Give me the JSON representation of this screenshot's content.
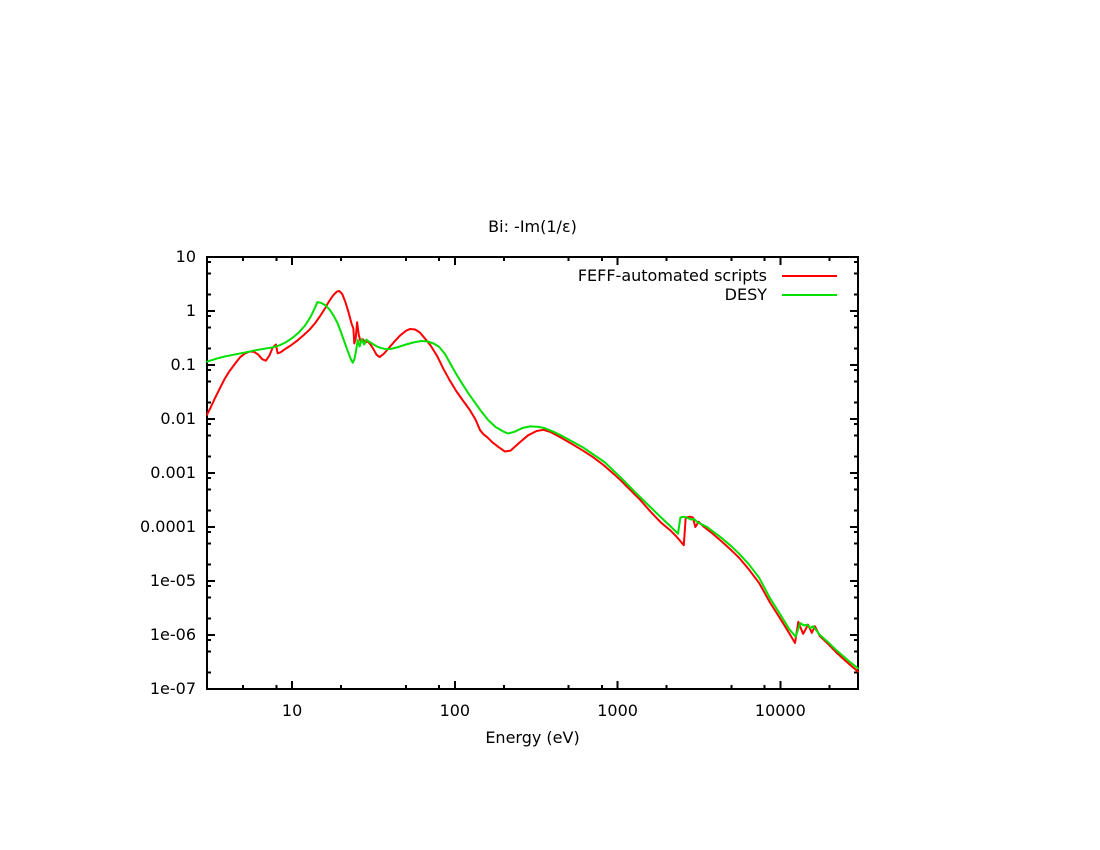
{
  "page": {
    "background": "#ffffff"
  },
  "chart_data": {
    "type": "line",
    "title": "Bi: -Im(1/ε)",
    "xlabel": "Energy (eV)",
    "ylabel": "",
    "x_scale": "log",
    "y_scale": "log",
    "xlim": [
      3,
      30000
    ],
    "ylim": [
      1e-07,
      10
    ],
    "grid": "off",
    "legend_position": "top-right-inside",
    "axis_color": "#000000",
    "minor_tick_pattern": [
      2,
      5,
      8
    ],
    "x_ticks": {
      "values": [
        10,
        100,
        1000,
        10000
      ],
      "labels": [
        "10",
        "100",
        "1000",
        "10000"
      ]
    },
    "y_ticks": {
      "values": [
        10,
        1,
        0.1,
        0.01,
        0.001,
        0.0001,
        1e-05,
        1e-06,
        1e-07
      ],
      "labels": [
        "10",
        "1",
        "0.1",
        "0.01",
        "0.001",
        "0.0001",
        "1e-05",
        "1e-06",
        "1e-07"
      ]
    },
    "series": [
      {
        "name": "FEFF-automated scripts",
        "color": "#ff0000",
        "points": [
          [
            3,
            0.012
          ],
          [
            3.15,
            0.016
          ],
          [
            3.35,
            0.024
          ],
          [
            3.6,
            0.037
          ],
          [
            3.85,
            0.055
          ],
          [
            4.1,
            0.075
          ],
          [
            4.45,
            0.105
          ],
          [
            4.8,
            0.14
          ],
          [
            5.15,
            0.165
          ],
          [
            5.5,
            0.178
          ],
          [
            5.85,
            0.175
          ],
          [
            6.2,
            0.155
          ],
          [
            6.55,
            0.128
          ],
          [
            6.9,
            0.12
          ],
          [
            7.25,
            0.15
          ],
          [
            7.6,
            0.21
          ],
          [
            7.95,
            0.24
          ],
          [
            8.15,
            0.165
          ],
          [
            8.5,
            0.172
          ],
          [
            9,
            0.195
          ],
          [
            9.8,
            0.23
          ],
          [
            10.8,
            0.285
          ],
          [
            11.8,
            0.36
          ],
          [
            12.8,
            0.45
          ],
          [
            13.8,
            0.59
          ],
          [
            14.8,
            0.79
          ],
          [
            15.8,
            1.07
          ],
          [
            16.8,
            1.48
          ],
          [
            17.8,
            1.92
          ],
          [
            18.8,
            2.28
          ],
          [
            19.5,
            2.35
          ],
          [
            20.3,
            2.08
          ],
          [
            21.2,
            1.5
          ],
          [
            22.2,
            0.95
          ],
          [
            23.2,
            0.58
          ],
          [
            23.8,
            0.47
          ],
          [
            24.1,
            0.25
          ],
          [
            24.6,
            0.31
          ],
          [
            25.1,
            0.62
          ],
          [
            25.7,
            0.36
          ],
          [
            26.3,
            0.28
          ],
          [
            27.2,
            0.3
          ],
          [
            28.2,
            0.26
          ],
          [
            29.2,
            0.275
          ],
          [
            30.3,
            0.24
          ],
          [
            31.5,
            0.2
          ],
          [
            33,
            0.155
          ],
          [
            34.5,
            0.14
          ],
          [
            36.5,
            0.16
          ],
          [
            39,
            0.2
          ],
          [
            42,
            0.26
          ],
          [
            46,
            0.35
          ],
          [
            50,
            0.43
          ],
          [
            53,
            0.465
          ],
          [
            57,
            0.455
          ],
          [
            61,
            0.4
          ],
          [
            66,
            0.3
          ],
          [
            71,
            0.23
          ],
          [
            78,
            0.145
          ],
          [
            85,
            0.085
          ],
          [
            93,
            0.052
          ],
          [
            102,
            0.033
          ],
          [
            112,
            0.022
          ],
          [
            123,
            0.015
          ],
          [
            134,
            0.0098
          ],
          [
            143,
            0.0062
          ],
          [
            150,
            0.0052
          ],
          [
            158,
            0.0046
          ],
          [
            170,
            0.0037
          ],
          [
            186,
            0.003
          ],
          [
            203,
            0.0025
          ],
          [
            220,
            0.0026
          ],
          [
            248,
            0.0036
          ],
          [
            282,
            0.005
          ],
          [
            318,
            0.006
          ],
          [
            350,
            0.0063
          ],
          [
            390,
            0.0057
          ],
          [
            450,
            0.0045
          ],
          [
            520,
            0.0035
          ],
          [
            600,
            0.0027
          ],
          [
            700,
            0.002
          ],
          [
            820,
            0.0014
          ],
          [
            950,
            0.00095
          ],
          [
            1035,
            0.00075
          ],
          [
            1200,
            0.00048
          ],
          [
            1372,
            0.00032
          ],
          [
            1600,
            0.00019
          ],
          [
            1850,
            0.00012
          ],
          [
            2100,
            8.75e-05
          ],
          [
            2300,
            6.65e-05
          ],
          [
            2550,
            4.6e-05
          ],
          [
            2620,
            0.00015
          ],
          [
            2780,
            0.000155
          ],
          [
            2900,
            0.00015
          ],
          [
            3000,
            0.0001
          ],
          [
            3150,
            0.000125
          ],
          [
            3400,
            0.0001
          ],
          [
            3800,
            7.7e-05
          ],
          [
            4300,
            5.6e-05
          ],
          [
            5000,
            3.7e-05
          ],
          [
            5600,
            2.65e-05
          ],
          [
            6400,
            1.65e-05
          ],
          [
            7400,
            9.2e-06
          ],
          [
            8640,
            4e-06
          ],
          [
            10000,
            2e-06
          ],
          [
            11300,
            1.1e-06
          ],
          [
            12300,
            7.1e-07
          ],
          [
            12900,
            1.75e-06
          ],
          [
            13800,
            1.05e-06
          ],
          [
            14800,
            1.55e-06
          ],
          [
            15600,
            1.1e-06
          ],
          [
            16300,
            1.45e-06
          ],
          [
            17500,
            9.5e-07
          ],
          [
            19500,
            7e-07
          ],
          [
            22000,
            4.8e-07
          ],
          [
            25500,
            3.2e-07
          ],
          [
            30000,
            2.1e-07
          ]
        ]
      },
      {
        "name": "DESY",
        "color": "#00e000",
        "points": [
          [
            3,
            0.115
          ],
          [
            3.4,
            0.13
          ],
          [
            3.9,
            0.145
          ],
          [
            4.5,
            0.158
          ],
          [
            5.2,
            0.172
          ],
          [
            6,
            0.188
          ],
          [
            6.8,
            0.2
          ],
          [
            7.6,
            0.213
          ],
          [
            8.4,
            0.233
          ],
          [
            9.2,
            0.265
          ],
          [
            10,
            0.315
          ],
          [
            11,
            0.4
          ],
          [
            12,
            0.54
          ],
          [
            13,
            0.78
          ],
          [
            13.7,
            1.08
          ],
          [
            14.3,
            1.46
          ],
          [
            15,
            1.42
          ],
          [
            16,
            1.28
          ],
          [
            17,
            1.06
          ],
          [
            18,
            0.82
          ],
          [
            19,
            0.6
          ],
          [
            20,
            0.4
          ],
          [
            21,
            0.265
          ],
          [
            22,
            0.18
          ],
          [
            23,
            0.126
          ],
          [
            23.6,
            0.11
          ],
          [
            24.2,
            0.132
          ],
          [
            24.9,
            0.21
          ],
          [
            25.3,
            0.29
          ],
          [
            26,
            0.22
          ],
          [
            26.8,
            0.3
          ],
          [
            27.7,
            0.24
          ],
          [
            28.6,
            0.295
          ],
          [
            29.6,
            0.272
          ],
          [
            31,
            0.25
          ],
          [
            33,
            0.222
          ],
          [
            35.5,
            0.205
          ],
          [
            38,
            0.196
          ],
          [
            41,
            0.2
          ],
          [
            45,
            0.215
          ],
          [
            50,
            0.24
          ],
          [
            56,
            0.262
          ],
          [
            62,
            0.278
          ],
          [
            68,
            0.272
          ],
          [
            74,
            0.25
          ],
          [
            80,
            0.216
          ],
          [
            87,
            0.16
          ],
          [
            94,
            0.105
          ],
          [
            102,
            0.068
          ],
          [
            111,
            0.045
          ],
          [
            121,
            0.03
          ],
          [
            133,
            0.02
          ],
          [
            146,
            0.0136
          ],
          [
            160,
            0.0096
          ],
          [
            178,
            0.0071
          ],
          [
            198,
            0.0059
          ],
          [
            212,
            0.0054
          ],
          [
            232,
            0.0058
          ],
          [
            260,
            0.0068
          ],
          [
            290,
            0.0073
          ],
          [
            320,
            0.0072
          ],
          [
            355,
            0.0068
          ],
          [
            400,
            0.0059
          ],
          [
            460,
            0.0048
          ],
          [
            530,
            0.0038
          ],
          [
            610,
            0.003
          ],
          [
            710,
            0.0022
          ],
          [
            830,
            0.0016
          ],
          [
            950,
            0.00108
          ],
          [
            1035,
            0.00085
          ],
          [
            1200,
            0.00054
          ],
          [
            1372,
            0.00036
          ],
          [
            1600,
            0.00023
          ],
          [
            1850,
            0.00015
          ],
          [
            2100,
            0.000105
          ],
          [
            2350,
            7.5e-05
          ],
          [
            2430,
            0.00015
          ],
          [
            2560,
            0.000155
          ],
          [
            2700,
            0.000146
          ],
          [
            2850,
            0.000137
          ],
          [
            2950,
            0.00014
          ],
          [
            3100,
            0.000122
          ],
          [
            3550,
            0.0001
          ],
          [
            4260,
            6.6e-05
          ],
          [
            5000,
            4.4e-05
          ],
          [
            5580,
            3.2e-05
          ],
          [
            6400,
            2.05e-05
          ],
          [
            7400,
            1.15e-05
          ],
          [
            8640,
            4.8e-06
          ],
          [
            10000,
            2.4e-06
          ],
          [
            11300,
            1.3e-06
          ],
          [
            12400,
            9.3e-07
          ],
          [
            13250,
            1.66e-06
          ],
          [
            14000,
            1.5e-06
          ],
          [
            14600,
            1.55e-06
          ],
          [
            15300,
            1.35e-06
          ],
          [
            15900,
            1.45e-06
          ],
          [
            17500,
            1e-06
          ],
          [
            19500,
            7.5e-07
          ],
          [
            22300,
            5.1e-07
          ],
          [
            26000,
            3.4e-07
          ],
          [
            30000,
            2.4e-07
          ]
        ]
      }
    ]
  }
}
